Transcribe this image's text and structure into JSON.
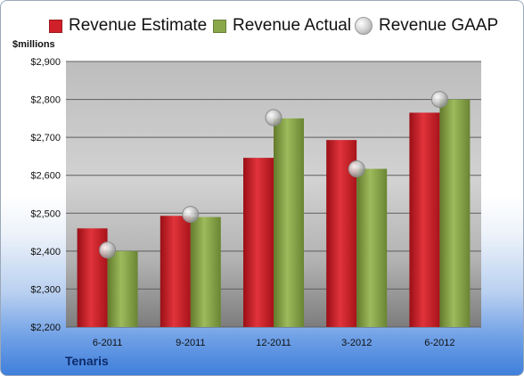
{
  "chart_data": {
    "type": "bar",
    "categories": [
      "6-2011",
      "9-2011",
      "12-2011",
      "3-2012",
      "6-2012"
    ],
    "series": [
      {
        "name": "Revenue Estimate",
        "values": [
          2460,
          2493,
          2646,
          2693,
          2765
        ]
      },
      {
        "name": "Revenue Actual",
        "values": [
          2400,
          2490,
          2750,
          2617,
          2800
        ]
      },
      {
        "name": "Revenue GAAP",
        "values": [
          2403,
          2497,
          2752,
          2617,
          2800
        ]
      }
    ],
    "ylabel": "$millions",
    "ylim": [
      2200,
      2900
    ],
    "yticks": [
      "$2,200",
      "$2,300",
      "$2,400",
      "$2,500",
      "$2,600",
      "$2,700",
      "$2,800",
      "$2,900"
    ],
    "grid": true,
    "legend_position": "top",
    "company": "Tenaris",
    "colors": {
      "estimate": "#d0202a",
      "actual": "#8aa84a",
      "gaap": "#c8c8c8"
    }
  }
}
